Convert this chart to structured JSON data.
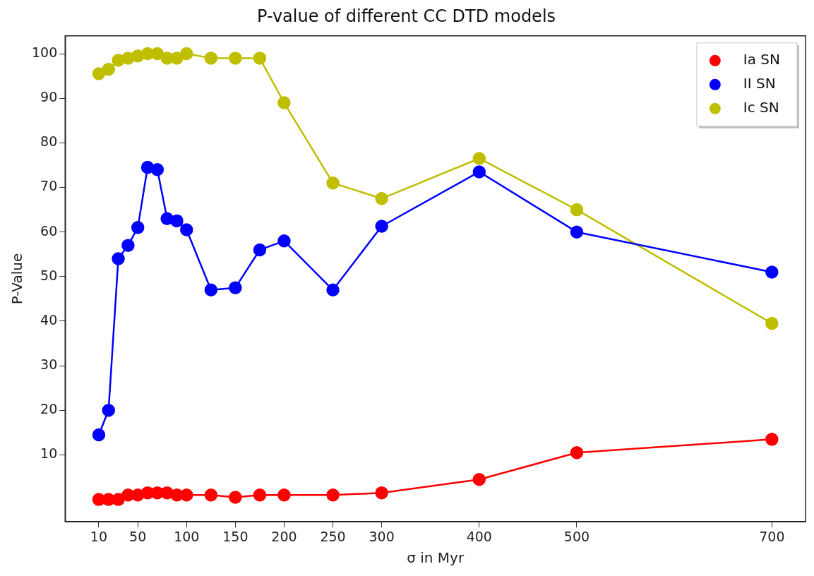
{
  "chart_data": {
    "type": "line",
    "title": "P-value of different CC DTD models",
    "xlabel": "σ in Myr",
    "ylabel": "P-Value",
    "x": [
      10,
      20,
      30,
      40,
      50,
      60,
      70,
      80,
      90,
      100,
      125,
      150,
      175,
      200,
      250,
      300,
      400,
      500,
      700
    ],
    "series": [
      {
        "name": "Ia SN",
        "color": "#ff0000",
        "values": [
          0,
          0,
          0,
          1,
          1,
          1.5,
          1.5,
          1.5,
          1,
          1,
          1,
          0.5,
          1,
          1,
          1,
          1.5,
          4.5,
          10.5,
          13.5
        ]
      },
      {
        "name": "II SN",
        "color": "#0000ff",
        "values": [
          14.5,
          20,
          54,
          57,
          61,
          74.5,
          74,
          63,
          62.5,
          60.5,
          47,
          47.5,
          56,
          58,
          47,
          61.3,
          73.5,
          60,
          51
        ]
      },
      {
        "name": "Ic SN",
        "color": "#bfbf00",
        "values": [
          95.5,
          96.5,
          98.5,
          99,
          99.5,
          100,
          100,
          99,
          99,
          100,
          99,
          99,
          99,
          89,
          71,
          67.5,
          76.5,
          65,
          39.5
        ]
      }
    ],
    "xlim": [
      -24.5,
      734.5
    ],
    "xticks": [
      10,
      50,
      100,
      150,
      200,
      250,
      300,
      400,
      500,
      700
    ],
    "ylim": [
      -5,
      104
    ],
    "yticks": [
      10,
      20,
      30,
      40,
      50,
      60,
      70,
      80,
      90,
      100
    ],
    "grid": false,
    "legend": "top right",
    "marker": "circle",
    "line_style": "solid"
  }
}
